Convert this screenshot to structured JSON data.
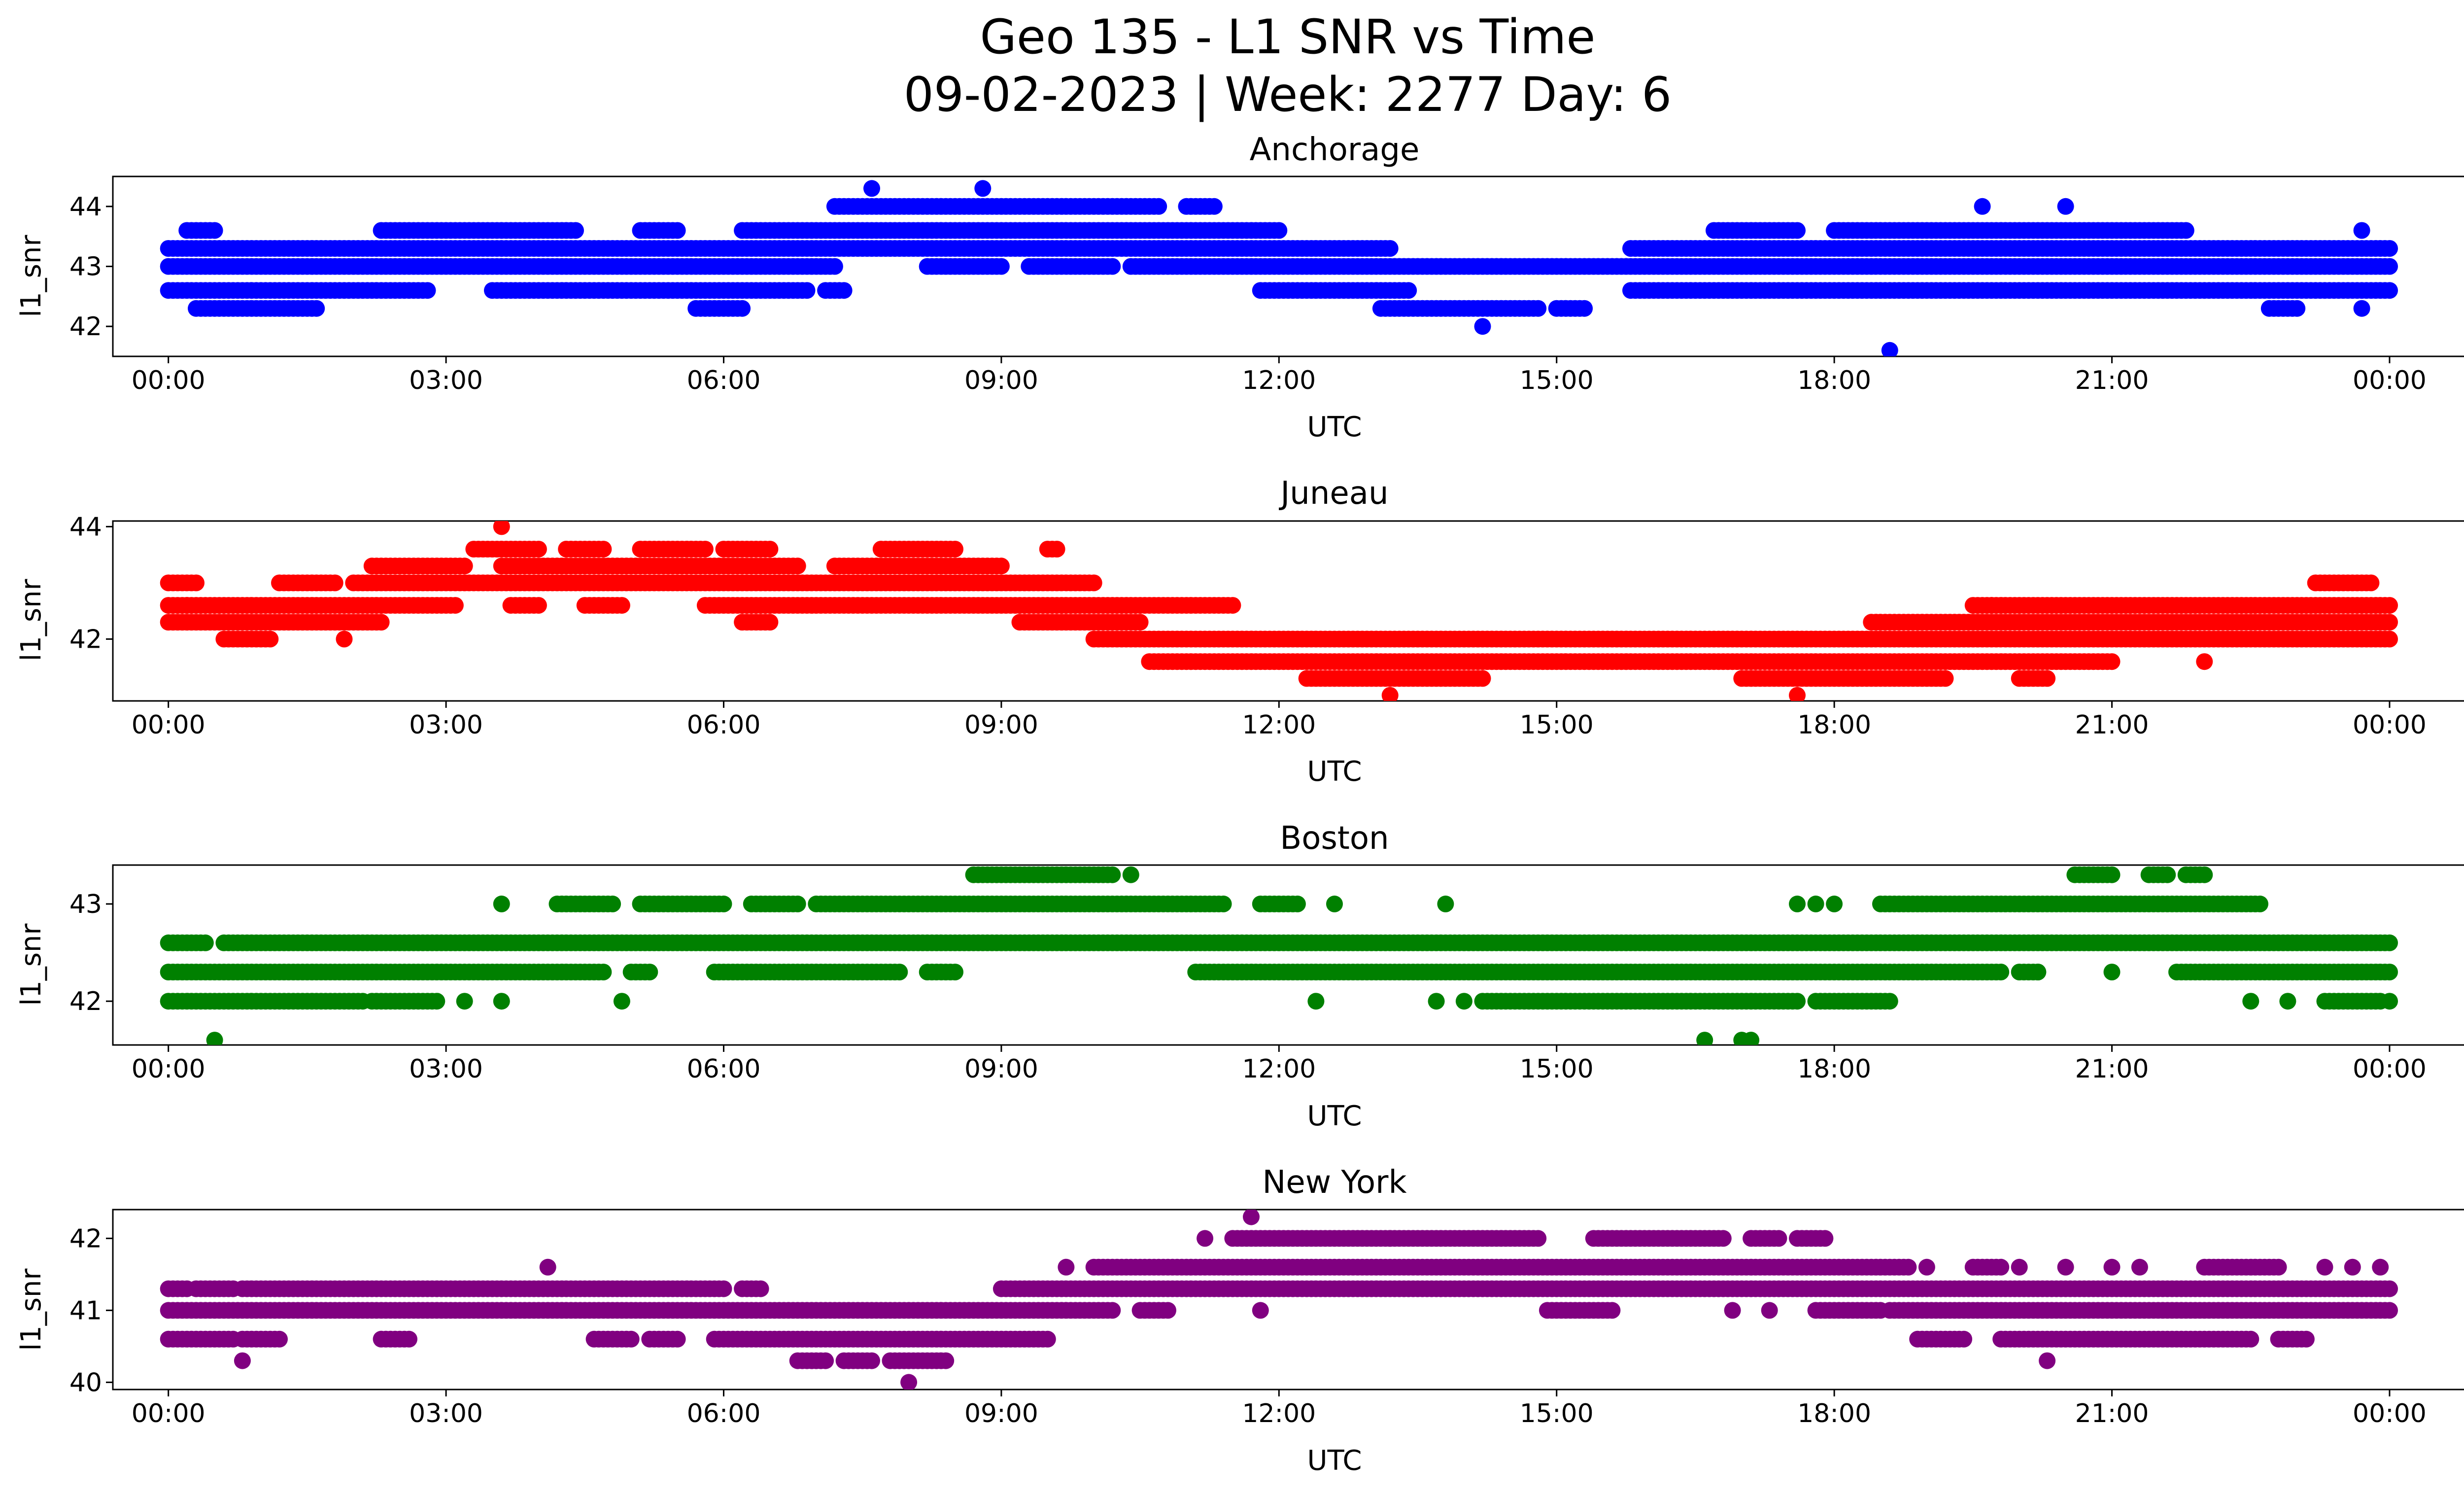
{
  "suptitle": {
    "line1": "Geo 135 - L1 SNR vs Time",
    "line2": "09-02-2023 | Week: 2277 Day: 6"
  },
  "chart_data": [
    {
      "type": "scatter",
      "title": "Anchorage",
      "xlabel": "UTC",
      "ylabel": "l1_snr",
      "color": "#0000ff",
      "xlim_hours": [
        -0.6,
        25.8
      ],
      "ylim": [
        41.5,
        44.5
      ],
      "yticks": [
        42,
        43,
        44
      ],
      "xticks": [
        "00:00",
        "03:00",
        "06:00",
        "09:00",
        "12:00",
        "15:00",
        "18:00",
        "21:00",
        "00:00"
      ],
      "bands": [
        {
          "y": 42.3,
          "ranges": [
            [
              0.3,
              1.6
            ],
            [
              5.7,
              6.2
            ],
            [
              13.1,
              14.8
            ],
            [
              15.0,
              15.3
            ],
            [
              22.7,
              23.0
            ]
          ]
        },
        {
          "y": 42.6,
          "ranges": [
            [
              0.0,
              2.8
            ],
            [
              3.5,
              6.9
            ],
            [
              7.1,
              7.3
            ],
            [
              11.8,
              13.4
            ],
            [
              15.8,
              24.0
            ]
          ]
        },
        {
          "y": 43.0,
          "ranges": [
            [
              0.0,
              7.2
            ],
            [
              8.2,
              9.0
            ],
            [
              9.3,
              10.2
            ],
            [
              10.4,
              24.0
            ]
          ]
        },
        {
          "y": 43.3,
          "ranges": [
            [
              0.0,
              13.2
            ],
            [
              15.8,
              24.0
            ]
          ]
        },
        {
          "y": 43.6,
          "ranges": [
            [
              0.2,
              0.5
            ],
            [
              2.3,
              4.4
            ],
            [
              5.1,
              5.5
            ],
            [
              6.2,
              12.0
            ],
            [
              16.7,
              17.6
            ],
            [
              18.0,
              21.8
            ]
          ]
        },
        {
          "y": 44.0,
          "ranges": [
            [
              7.2,
              10.7
            ],
            [
              11.0,
              11.3
            ]
          ]
        }
      ],
      "points": [
        [
          7.6,
          44.3
        ],
        [
          8.8,
          44.3
        ],
        [
          14.2,
          42.0
        ],
        [
          18.6,
          41.6
        ],
        [
          19.6,
          44.0
        ],
        [
          20.5,
          44.0
        ],
        [
          23.7,
          43.6
        ],
        [
          23.7,
          42.3
        ]
      ]
    },
    {
      "type": "scatter",
      "title": "Juneau",
      "xlabel": "UTC",
      "ylabel": "l1_snr",
      "color": "#ff0000",
      "xlim_hours": [
        -0.6,
        25.8
      ],
      "ylim": [
        40.9,
        44.1
      ],
      "yticks": [
        42,
        44
      ],
      "xticks": [
        "00:00",
        "03:00",
        "06:00",
        "09:00",
        "12:00",
        "15:00",
        "18:00",
        "21:00",
        "00:00"
      ],
      "bands": [
        {
          "y": 41.0,
          "ranges": []
        },
        {
          "y": 41.3,
          "ranges": [
            [
              12.3,
              14.2
            ],
            [
              17.0,
              19.2
            ],
            [
              20.0,
              20.3
            ]
          ]
        },
        {
          "y": 41.6,
          "ranges": [
            [
              10.6,
              21.0
            ]
          ]
        },
        {
          "y": 42.0,
          "ranges": [
            [
              0.6,
              1.1
            ],
            [
              10.0,
              24.0
            ]
          ]
        },
        {
          "y": 42.3,
          "ranges": [
            [
              0.0,
              2.3
            ],
            [
              6.2,
              6.5
            ],
            [
              9.2,
              10.5
            ],
            [
              18.4,
              24.0
            ]
          ]
        },
        {
          "y": 42.6,
          "ranges": [
            [
              0.0,
              3.1
            ],
            [
              3.7,
              4.0
            ],
            [
              4.5,
              4.9
            ],
            [
              5.8,
              11.5
            ],
            [
              19.5,
              24.0
            ]
          ]
        },
        {
          "y": 43.0,
          "ranges": [
            [
              0.0,
              0.3
            ],
            [
              1.2,
              1.8
            ],
            [
              2.0,
              10.0
            ],
            [
              23.2,
              23.8
            ]
          ]
        },
        {
          "y": 43.3,
          "ranges": [
            [
              2.2,
              3.2
            ],
            [
              3.6,
              6.8
            ],
            [
              7.2,
              9.0
            ]
          ]
        },
        {
          "y": 43.6,
          "ranges": [
            [
              3.3,
              4.0
            ],
            [
              4.3,
              4.7
            ],
            [
              5.1,
              5.8
            ],
            [
              6.0,
              6.5
            ],
            [
              7.7,
              8.5
            ],
            [
              9.5,
              9.6
            ]
          ]
        }
      ],
      "points": [
        [
          3.6,
          44.0
        ],
        [
          13.2,
          41.0
        ],
        [
          17.6,
          41.0
        ],
        [
          0.2,
          42.6
        ],
        [
          22.0,
          41.6
        ],
        [
          19.7,
          42.6
        ],
        [
          1.9,
          42.0
        ]
      ]
    },
    {
      "type": "scatter",
      "title": "Boston",
      "xlabel": "UTC",
      "ylabel": "l1_snr",
      "color": "#008000",
      "xlim_hours": [
        -0.6,
        25.8
      ],
      "ylim": [
        41.55,
        43.4
      ],
      "yticks": [
        42,
        43
      ],
      "xticks": [
        "00:00",
        "03:00",
        "06:00",
        "09:00",
        "12:00",
        "15:00",
        "18:00",
        "21:00",
        "00:00"
      ],
      "bands": [
        {
          "y": 42.0,
          "ranges": [
            [
              0.0,
              2.1
            ],
            [
              2.2,
              2.9
            ],
            [
              14.2,
              17.6
            ],
            [
              17.8,
              18.6
            ],
            [
              23.3,
              23.9
            ]
          ]
        },
        {
          "y": 42.3,
          "ranges": [
            [
              0.0,
              4.7
            ],
            [
              5.0,
              5.2
            ],
            [
              5.9,
              7.9
            ],
            [
              8.2,
              8.5
            ],
            [
              11.1,
              19.8
            ],
            [
              20.0,
              20.2
            ],
            [
              21.7,
              24.0
            ]
          ]
        },
        {
          "y": 42.6,
          "ranges": [
            [
              0.0,
              0.4
            ],
            [
              0.6,
              24.0
            ]
          ]
        },
        {
          "y": 43.0,
          "ranges": [
            [
              4.2,
              4.8
            ],
            [
              5.1,
              6.0
            ],
            [
              6.3,
              6.8
            ],
            [
              7.0,
              11.4
            ],
            [
              11.8,
              12.2
            ],
            [
              18.5,
              22.6
            ]
          ]
        },
        {
          "y": 43.3,
          "ranges": [
            [
              8.7,
              10.2
            ],
            [
              20.6,
              21.0
            ],
            [
              21.4,
              21.6
            ],
            [
              21.8,
              22.0
            ]
          ]
        }
      ],
      "points": [
        [
          0.5,
          41.6
        ],
        [
          3.6,
          43.0
        ],
        [
          4.9,
          42.0
        ],
        [
          3.2,
          42.0
        ],
        [
          3.6,
          42.0
        ],
        [
          10.4,
          43.3
        ],
        [
          12.4,
          42.0
        ],
        [
          12.6,
          43.0
        ],
        [
          13.8,
          43.0
        ],
        [
          13.7,
          42.0
        ],
        [
          14.0,
          42.0
        ],
        [
          16.6,
          41.6
        ],
        [
          17.0,
          41.6
        ],
        [
          17.1,
          41.6
        ],
        [
          17.6,
          43.0
        ],
        [
          17.8,
          43.0
        ],
        [
          18.0,
          43.0
        ],
        [
          20.2,
          42.3
        ],
        [
          21.0,
          42.3
        ],
        [
          22.5,
          42.0
        ],
        [
          22.9,
          42.0
        ],
        [
          24.0,
          42.0
        ]
      ]
    },
    {
      "type": "scatter",
      "title": "New York",
      "xlabel": "UTC",
      "ylabel": "l1_snr",
      "color": "#800080",
      "xlim_hours": [
        -0.6,
        25.8
      ],
      "ylim": [
        39.9,
        42.4
      ],
      "yticks": [
        40,
        41,
        42
      ],
      "xticks": [
        "00:00",
        "03:00",
        "06:00",
        "09:00",
        "12:00",
        "15:00",
        "18:00",
        "21:00",
        "00:00"
      ],
      "bands": [
        {
          "y": 40.3,
          "ranges": [
            [
              6.8,
              7.1
            ],
            [
              7.3,
              7.6
            ],
            [
              7.8,
              8.4
            ]
          ]
        },
        {
          "y": 40.6,
          "ranges": [
            [
              0.0,
              0.7
            ],
            [
              0.8,
              1.2
            ],
            [
              2.3,
              2.6
            ],
            [
              4.6,
              5.0
            ],
            [
              5.2,
              5.5
            ],
            [
              5.9,
              9.5
            ],
            [
              18.9,
              19.4
            ],
            [
              19.8,
              22.5
            ],
            [
              22.8,
              23.1
            ]
          ]
        },
        {
          "y": 41.0,
          "ranges": [
            [
              0.0,
              10.2
            ],
            [
              10.5,
              10.8
            ],
            [
              14.9,
              15.6
            ],
            [
              17.8,
              18.5
            ],
            [
              18.6,
              24.0
            ]
          ]
        },
        {
          "y": 41.3,
          "ranges": [
            [
              0.0,
              0.2
            ],
            [
              0.3,
              0.7
            ],
            [
              0.8,
              6.0
            ],
            [
              6.2,
              6.4
            ],
            [
              9.0,
              24.0
            ]
          ]
        },
        {
          "y": 41.6,
          "ranges": [
            [
              10.0,
              18.8
            ],
            [
              19.5,
              19.8
            ],
            [
              22.0,
              22.8
            ]
          ]
        },
        {
          "y": 42.0,
          "ranges": [
            [
              11.5,
              14.8
            ],
            [
              15.4,
              16.8
            ],
            [
              17.1,
              17.4
            ],
            [
              17.6,
              17.9
            ]
          ]
        }
      ],
      "points": [
        [
          0.8,
          40.3
        ],
        [
          4.1,
          41.6
        ],
        [
          8.0,
          40.0
        ],
        [
          9.7,
          41.6
        ],
        [
          11.2,
          42.0
        ],
        [
          11.7,
          42.3
        ],
        [
          11.8,
          41.0
        ],
        [
          13.2,
          42.0
        ],
        [
          16.9,
          41.0
        ],
        [
          17.3,
          41.0
        ],
        [
          19.0,
          41.6
        ],
        [
          20.0,
          41.6
        ],
        [
          20.3,
          40.3
        ],
        [
          20.5,
          41.6
        ],
        [
          21.0,
          41.6
        ],
        [
          21.3,
          41.6
        ],
        [
          23.3,
          41.6
        ],
        [
          23.6,
          41.6
        ],
        [
          23.9,
          41.6
        ]
      ]
    }
  ]
}
